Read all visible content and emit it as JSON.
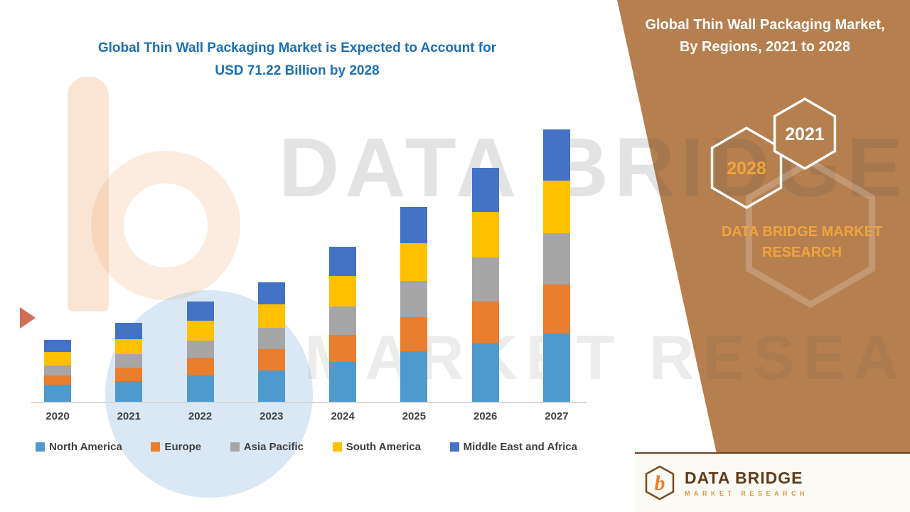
{
  "chart_data": {
    "type": "bar",
    "stacked": true,
    "title": "Global Thin Wall Packaging Market is Expected to Account for USD 71.22 Billion by 2028",
    "units": "USD Billion",
    "categories": [
      "2020",
      "2021",
      "2022",
      "2023",
      "2024",
      "2025",
      "2026",
      "2027"
    ],
    "series": [
      {
        "name": "North America",
        "color": "#4e9acd",
        "values": [
          4.0,
          5.0,
          6.3,
          7.5,
          9.5,
          12.0,
          14.0,
          16.3
        ]
      },
      {
        "name": "Europe",
        "color": "#e87e2e",
        "values": [
          2.3,
          3.2,
          4.2,
          5.0,
          6.5,
          8.2,
          10.0,
          11.8
        ]
      },
      {
        "name": "Asia Pacific",
        "color": "#a6a6a6",
        "values": [
          2.3,
          3.2,
          4.2,
          5.2,
          6.8,
          8.6,
          10.5,
          12.2
        ]
      },
      {
        "name": "South America",
        "color": "#ffc000",
        "values": [
          3.2,
          3.6,
          4.6,
          5.6,
          7.2,
          9.0,
          10.8,
          12.5
        ]
      },
      {
        "name": "Middle East and Africa",
        "color": "#4472c4",
        "values": [
          3.0,
          3.8,
          4.7,
          5.3,
          7.0,
          8.7,
          10.5,
          12.2
        ]
      }
    ],
    "legend_position": "bottom",
    "y_axis_visible": false,
    "grid": false
  },
  "left": {
    "title_line1": "Global Thin Wall Packaging Market is Expected to Account for",
    "title_line2": "USD 71.22 Billion by 2028"
  },
  "right_panel": {
    "heading_line1": "Global Thin Wall Packaging Market,",
    "heading_line2": "By Regions, 2021 to 2028",
    "hexagon_back_year": "2028",
    "hexagon_front_year": "2021",
    "brand_line1": "DATA BRIDGE MARKET",
    "brand_line2": "RESEARCH",
    "panel_color": "#b67f4f",
    "gold_color": "#f0a43c",
    "title_color": "#1b6fb5"
  },
  "watermark": {
    "line1": "DATA BRIDGE",
    "line2": "MARKET RESEARCH"
  },
  "footer": {
    "brand": "DATA BRIDGE",
    "tagline": "MARKET RESEARCH"
  }
}
